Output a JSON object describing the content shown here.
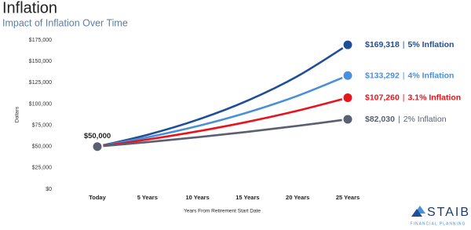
{
  "chart_data": {
    "type": "line",
    "title": "Inflation",
    "subtitle": "Impact of Inflation Over Time",
    "y_label": "Dollars",
    "x_label": "Years From Retirement Start Date",
    "categories": [
      "Today",
      "5 Years",
      "10 Years",
      "15 Years",
      "20 Years",
      "25 Years"
    ],
    "label_separator": "|",
    "series": [
      {
        "name": "5% Inflation",
        "color": "#1f4e99",
        "values": [
          50000,
          63814,
          81445,
          103946,
          132665,
          169318
        ],
        "value_labels": [
          null,
          null,
          null,
          null,
          null,
          "$169,318"
        ]
      },
      {
        "name": "4% Inflation",
        "color": "#4a90d9",
        "values": [
          50000,
          60833,
          74012,
          90047,
          109556,
          133292
        ],
        "value_labels": [
          null,
          null,
          null,
          null,
          null,
          "$133,292"
        ]
      },
      {
        "name": "3.1% Inflation",
        "color": "#e8141b",
        "values": [
          50000,
          58246,
          67852,
          79042,
          92077,
          107260
        ],
        "value_labels": [
          null,
          null,
          null,
          null,
          null,
          "$107,260"
        ]
      },
      {
        "name": "2% Inflation",
        "color": "#5a5f73",
        "values": [
          50000,
          55204,
          60950,
          67293,
          74297,
          82030
        ],
        "value_labels": [
          "$50,000",
          null,
          null,
          null,
          null,
          "$82,030"
        ]
      }
    ],
    "ylim": [
      0,
      175000
    ],
    "yticks": [
      {
        "value": 0,
        "label": "$0"
      },
      {
        "value": 25000,
        "label": "$25,000"
      },
      {
        "value": 50000,
        "label": "$50,000"
      },
      {
        "value": 75000,
        "label": "$75,000"
      },
      {
        "value": 100000,
        "label": "$100,000"
      },
      {
        "value": 125000,
        "label": "$125,000"
      },
      {
        "value": 150000,
        "label": "$150,000"
      },
      {
        "value": 175000,
        "label": "$175,000"
      }
    ],
    "grid": false
  },
  "logo": {
    "name": "STAIB",
    "tagline": "FINANCIAL PLANNING"
  }
}
